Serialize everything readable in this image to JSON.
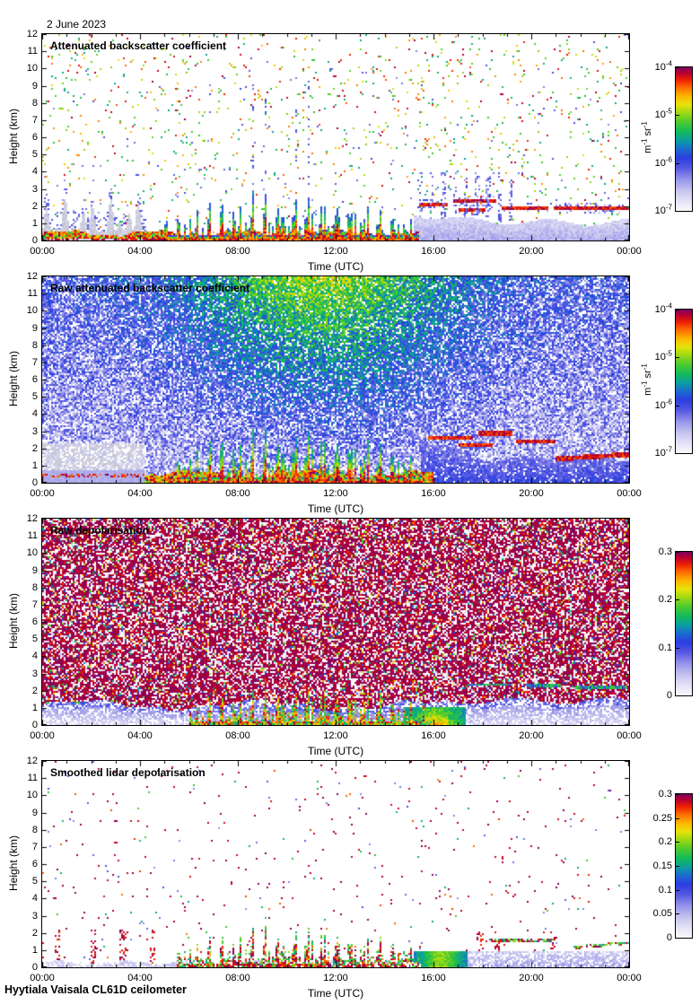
{
  "page": {
    "date_label": "2 June 2023",
    "footer": "Hyytiala Vaisala CL61D ceilometer",
    "background": "#ffffff",
    "text_color": "#000000"
  },
  "axes": {
    "x": {
      "label": "Time (UTC)",
      "tick_labels": [
        "00:00",
        "04:00",
        "08:00",
        "12:00",
        "16:00",
        "20:00",
        "00:00"
      ],
      "range_hours": [
        0,
        24
      ],
      "major_tick_h": 4,
      "minor_tick_h": 1
    },
    "y": {
      "label": "Height (km)",
      "tick_labels": [
        "0",
        "1",
        "2",
        "3",
        "4",
        "5",
        "6",
        "7",
        "8",
        "9",
        "10",
        "11",
        "12"
      ],
      "range_km": [
        0,
        12
      ]
    }
  },
  "colormap": {
    "stops": [
      [
        0.0,
        "#f8f7fc"
      ],
      [
        0.06,
        "#e8e6f6"
      ],
      [
        0.14,
        "#c6c4ef"
      ],
      [
        0.22,
        "#9795e9"
      ],
      [
        0.3,
        "#5557e2"
      ],
      [
        0.37,
        "#2b3ee0"
      ],
      [
        0.43,
        "#1b6ad0"
      ],
      [
        0.49,
        "#0d9da0"
      ],
      [
        0.55,
        "#12b95c"
      ],
      [
        0.62,
        "#4ecb2d"
      ],
      [
        0.68,
        "#9bd814"
      ],
      [
        0.74,
        "#e6e30a"
      ],
      [
        0.8,
        "#ffb300"
      ],
      [
        0.86,
        "#ff6a00"
      ],
      [
        0.91,
        "#ee2200"
      ],
      [
        0.96,
        "#b80030"
      ],
      [
        1.0,
        "#7c0063"
      ]
    ]
  },
  "chart_data": {
    "type": "heatmap",
    "n_panels": 4,
    "x_axis": "Time (UTC) from 00:00 to 24:00 on 2 June 2023",
    "y_axis": "Height (km) from 0 to 12",
    "grid": false,
    "panels": [
      {
        "title": "Attenuated backscatter coefficient",
        "colorbar": {
          "scale": "log",
          "range": [
            1e-07,
            0.0001
          ],
          "tick_labels": [
            "10^-4",
            "10^-5",
            "10^-6",
            "10^-7"
          ],
          "unit": "m^-1 sr^-1",
          "position": "right"
        },
        "description": "Mostly white (screened) field with sparse colored speckles aloft; grey aerosol plumes 0-2.5 km before 04:00; strong red boundary-layer band below ~0.5 km until ~15:30 with colorful convective spikes (1-3 km) from 05:00-15:30; after 15:30 light-blue haze below ~1.5 km with thin dark-red cloud streaks near 1.8-2.3 km until midnight.",
        "render": {
          "speckle_density": 0.03,
          "bl_end_h": 15.4,
          "bl_dark_top_km": 0.14,
          "plume_end_h": 4.35,
          "spike_window_h": [
            5,
            15.4
          ],
          "haze_start_h": 15.2,
          "cloud_streaks": [
            [
              15.4,
              16.6,
              2.05
            ],
            [
              16.8,
              18.6,
              2.3
            ],
            [
              17.0,
              18.1,
              1.78
            ],
            [
              18.8,
              20.7,
              1.92
            ],
            [
              20.9,
              23.95,
              1.86
            ]
          ]
        }
      },
      {
        "title": "Raw attenuated backscatter coefficient",
        "colorbar": {
          "scale": "log",
          "range": [
            1e-07,
            0.0001
          ],
          "tick_labels": [
            "10^-4",
            "10^-5",
            "10^-6",
            "10^-7"
          ],
          "unit": "m^-1 sr^-1",
          "position": "right"
        },
        "description": "Full-field solar background noise: blue with white speckles low down grading to green/yellow noise at high altitude, strongest near midday; solid lavender block below ~0.75 km until 04:00; red boundary layer band and tall colorful spikes 05:30-15:30; blue fill below ~2 km after 15:30 with dark-red cloud streaks 2-3 km (16:00-21:00) and a rising streak near 1.4-1.7 km to midnight.",
        "render": {
          "sun_peak_h": 11.5,
          "sun_sigma_h": 5.5,
          "solid_block": [
            0,
            4.2,
            0.75
          ],
          "bl_window_h": [
            4.0,
            16.0
          ],
          "spike_window_h": [
            5.5,
            15.5
          ],
          "fill_start_h": 15.5,
          "streaks": [
            [
              15.8,
              17.6,
              2.6,
              0
            ],
            [
              17.0,
              18.4,
              2.2,
              0
            ],
            [
              17.8,
              19.2,
              2.85,
              0
            ],
            [
              19.4,
              21.0,
              2.4,
              0
            ],
            [
              21.0,
              24,
              1.38,
              0.09
            ]
          ]
        }
      },
      {
        "title": "Raw depolarisation",
        "colorbar": {
          "scale": "linear",
          "range": [
            0,
            0.3
          ],
          "tick_labels": [
            "0.3",
            "0.2",
            "0.1",
            "0"
          ],
          "unit": null,
          "position": "right"
        },
        "description": "Dense dark-purple noise (saturated depolarisation) everywhere above ~1.2 km with white and colored speckles; low-depolarisation blue/white band below ~1.2 km; colorful spikes from the surface 06:00-16:00; green/yellow/red blob near the surface around 15:00-17:00; blue band with white wisps and thin green cloud streaks near 2.2-2.4 km after 17:00.",
        "render": {
          "purple_fraction": 0.55,
          "white_fraction": 0.2,
          "bl_km": 1.15,
          "spike_window_h": [
            6,
            16
          ],
          "blob_window_h": [
            14.8,
            17.3
          ],
          "streaks": [
            [
              0.2,
              1.8,
              1.25
            ],
            [
              17.4,
              19.2,
              2.35
            ],
            [
              19.8,
              21.2,
              2.3
            ],
            [
              21.8,
              23.9,
              2.15
            ]
          ]
        }
      },
      {
        "title": "Smoothed lidar depolarisation",
        "colorbar": {
          "scale": "linear",
          "range": [
            0,
            0.3
          ],
          "tick_labels": [
            "0.3",
            "0.25",
            "0.2",
            "0.15",
            "0.1",
            "0.05",
            "0"
          ],
          "unit": null,
          "position": "right"
        },
        "description": "Mostly white with sparse purple dots; thin lavender layer at the surface; purple/red spikes with green edges up to ~2 km 05:30-15:30; bright green patch near the surface 15:30-17:00; lavender-blue band below ~1 km after 17:00 with a multicoloured rising streak near 1.2-1.5 km toward midnight and dotted purple columns near 18:00 and 21:00.",
        "render": {
          "dot_density": 0.013,
          "base_layer_km": 0.3,
          "spike_window_h": [
            5.5,
            15.5
          ],
          "blob_window_h": [
            15.2,
            17.4
          ],
          "right_band": [
            17,
            24,
            0.95
          ],
          "streaks": [
            [
              18.3,
              20.9,
              1.55,
              0
            ],
            [
              21.7,
              24,
              1.15,
              0.12
            ]
          ],
          "dot_columns": [
            0.6,
            2.1,
            3.3,
            4.5,
            17.9,
            18.6,
            20.9
          ]
        }
      }
    ]
  }
}
